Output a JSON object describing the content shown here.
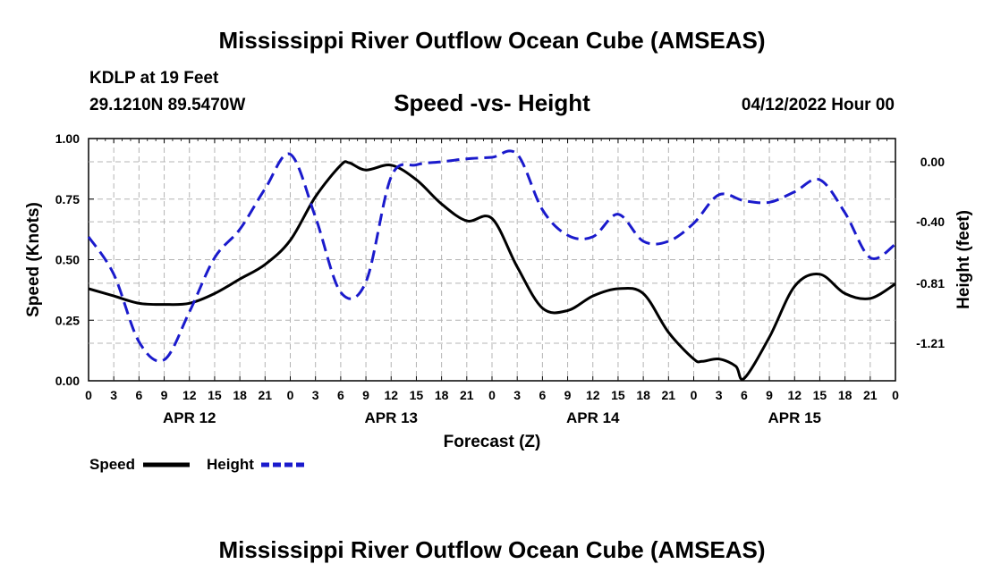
{
  "header": {
    "title": "Mississippi River Outflow Ocean Cube (AMSEAS)",
    "station": "KDLP at 19 Feet",
    "coords": "29.1210N  89.5470W",
    "subtitle": "Speed -vs- Height",
    "date": "04/12/2022 Hour 00"
  },
  "footer": {
    "title": "Mississippi River Outflow Ocean Cube (AMSEAS)"
  },
  "legend": {
    "speed_label": "Speed",
    "height_label": "Height"
  },
  "colors": {
    "speed": "#000000",
    "height": "#1a1acc",
    "grid": "#b4b4b4"
  },
  "chart_data": {
    "type": "line",
    "title": "Speed -vs- Height",
    "xlabel": "Forecast (Z)",
    "ylabel": "Speed (Knots)",
    "y2label": "Height (feet)",
    "xlim": [
      0,
      96
    ],
    "ylim": [
      0,
      1.0
    ],
    "y2lim": [
      -1.46,
      0.155
    ],
    "x_ticks": [
      0,
      3,
      6,
      9,
      12,
      15,
      18,
      21,
      24,
      27,
      30,
      33,
      36,
      39,
      42,
      45,
      48,
      51,
      54,
      57,
      60,
      63,
      66,
      69,
      72,
      75,
      78,
      81,
      84,
      87,
      90,
      93,
      96
    ],
    "x_tick_labels": [
      "0",
      "3",
      "6",
      "9",
      "12",
      "15",
      "18",
      "21",
      "0",
      "3",
      "6",
      "9",
      "12",
      "15",
      "18",
      "21",
      "0",
      "3",
      "6",
      "9",
      "12",
      "15",
      "18",
      "21",
      "0",
      "3",
      "6",
      "9",
      "12",
      "15",
      "18",
      "21",
      "0"
    ],
    "day_labels": [
      {
        "x": 12,
        "label": "APR 12"
      },
      {
        "x": 36,
        "label": "APR 13"
      },
      {
        "x": 60,
        "label": "APR 14"
      },
      {
        "x": 84,
        "label": "APR 15"
      }
    ],
    "y_ticks": [
      0,
      0.25,
      0.5,
      0.75,
      1.0
    ],
    "y_tick_labels": [
      "0.00",
      "0.25",
      "0.50",
      "0.75",
      "1.00"
    ],
    "y2_ticks": [
      0.0,
      -0.4,
      -0.81,
      -1.21
    ],
    "y2_tick_labels": [
      "0.00",
      "-0.40",
      "-0.81",
      "-1.21"
    ],
    "series": [
      {
        "name": "Speed",
        "axis": "left",
        "dash": "solid",
        "x": [
          0,
          3,
          6,
          9,
          12,
          15,
          18,
          21,
          24,
          27,
          30,
          31,
          33,
          36,
          39,
          42,
          45,
          48,
          51,
          54,
          57,
          60,
          63,
          66,
          69,
          72,
          73,
          75,
          77,
          78,
          81,
          84,
          87,
          90,
          93,
          96
        ],
        "values": [
          0.38,
          0.35,
          0.32,
          0.315,
          0.32,
          0.36,
          0.42,
          0.48,
          0.58,
          0.76,
          0.89,
          0.9,
          0.87,
          0.89,
          0.83,
          0.73,
          0.66,
          0.67,
          0.47,
          0.3,
          0.29,
          0.35,
          0.38,
          0.36,
          0.2,
          0.09,
          0.08,
          0.09,
          0.06,
          0.01,
          0.18,
          0.39,
          0.44,
          0.36,
          0.34,
          0.4
        ]
      },
      {
        "name": "Height",
        "axis": "right",
        "dash": "dashed",
        "x": [
          0,
          3,
          6,
          9,
          12,
          15,
          18,
          21,
          24,
          27,
          30,
          33,
          36,
          39,
          42,
          45,
          48,
          51,
          54,
          57,
          60,
          63,
          66,
          69,
          72,
          75,
          78,
          81,
          84,
          87,
          90,
          93,
          96
        ],
        "values": [
          -0.5,
          -0.75,
          -1.2,
          -1.32,
          -1.0,
          -0.64,
          -0.45,
          -0.18,
          0.05,
          -0.37,
          -0.87,
          -0.8,
          -0.1,
          -0.02,
          0.0,
          0.02,
          0.03,
          0.05,
          -0.32,
          -0.49,
          -0.5,
          -0.35,
          -0.53,
          -0.53,
          -0.41,
          -0.22,
          -0.26,
          -0.27,
          -0.2,
          -0.12,
          -0.34,
          -0.64,
          -0.55
        ]
      }
    ]
  }
}
